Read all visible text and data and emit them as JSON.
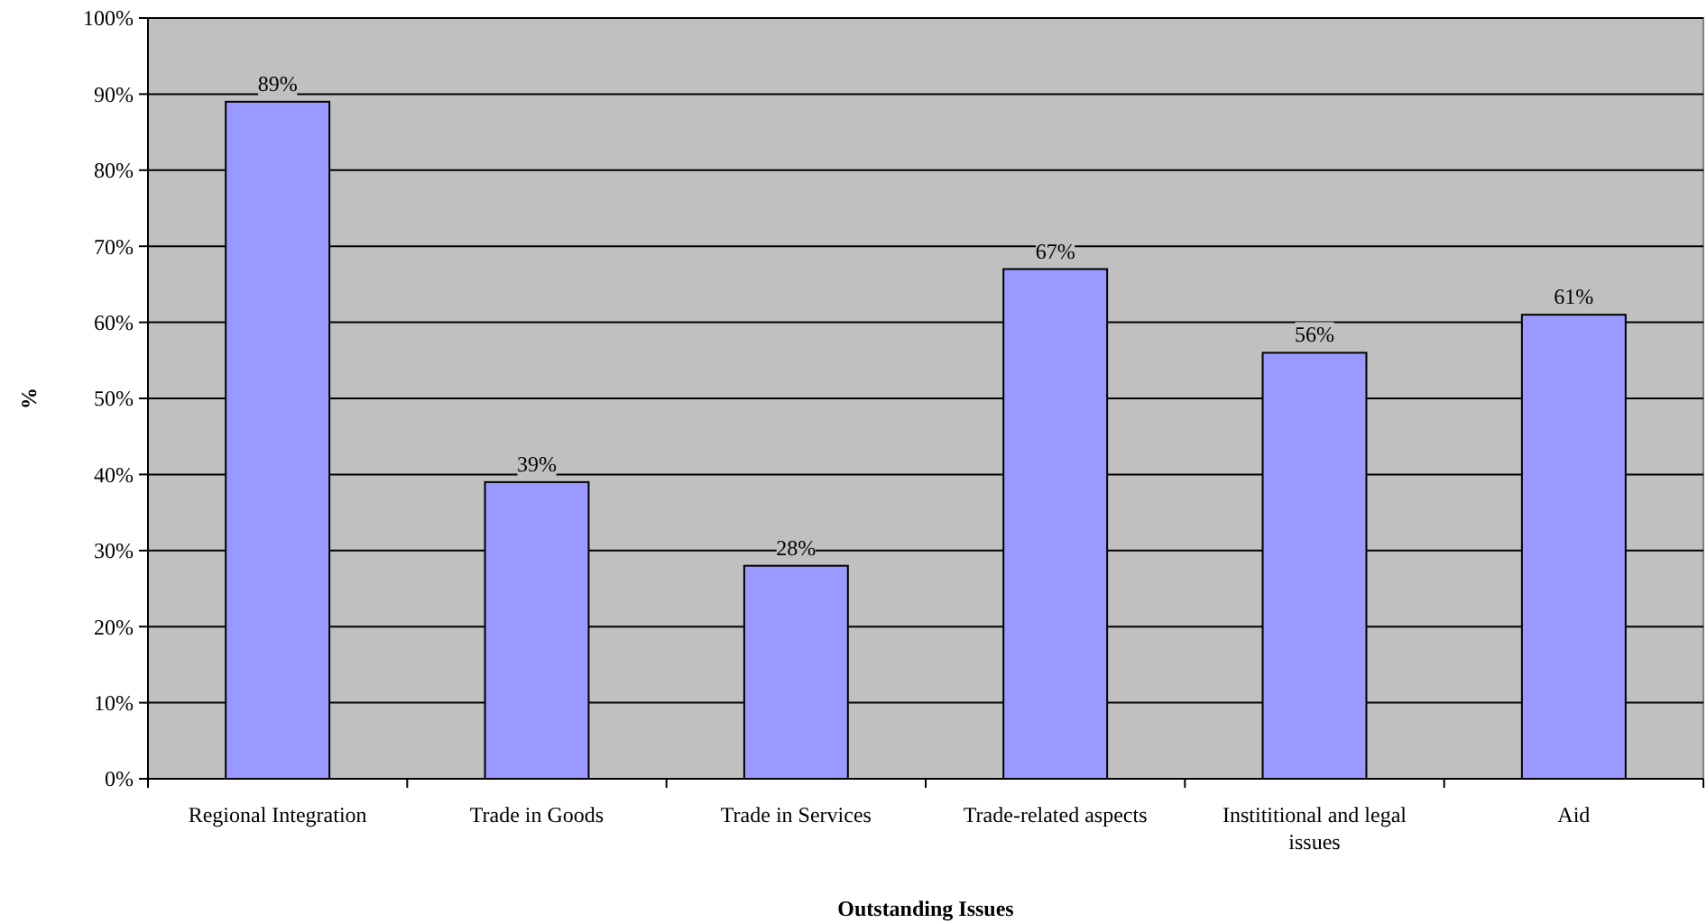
{
  "chart_data": {
    "type": "bar",
    "xlabel": "Outstanding Issues",
    "ylabel": "%",
    "categories": [
      "Regional Integration",
      "Trade in Goods",
      "Trade in Services",
      "Trade-related aspects",
      "Instititional and legal issues",
      "Aid"
    ],
    "values": [
      89,
      39,
      28,
      67,
      56,
      61
    ],
    "value_labels": [
      "89%",
      "39%",
      "28%",
      "67%",
      "56%",
      "61%"
    ],
    "color": "#9999ff",
    "ylim": [
      0,
      100
    ],
    "yticks": [
      {
        "value": 0,
        "label": "0%"
      },
      {
        "value": 10,
        "label": "10%"
      },
      {
        "value": 20,
        "label": "20%"
      },
      {
        "value": 30,
        "label": "30%"
      },
      {
        "value": 40,
        "label": "40%"
      },
      {
        "value": 50,
        "label": "50%"
      },
      {
        "value": 60,
        "label": "60%"
      },
      {
        "value": 70,
        "label": "70%"
      },
      {
        "value": 80,
        "label": "80%"
      },
      {
        "value": 90,
        "label": "90%"
      },
      {
        "value": 100,
        "label": "100%"
      }
    ],
    "grid": "y"
  }
}
